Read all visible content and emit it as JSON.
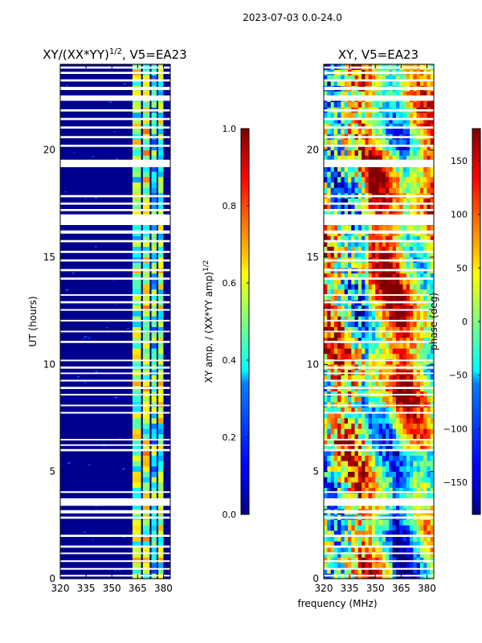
{
  "suptitle": "2023-07-03 0.0-24.0",
  "xlabel": "frequency (MHz)",
  "colors": {
    "gap": "#ffffff",
    "frame": "#000000"
  },
  "chart_data": [
    {
      "type": "heatmap",
      "title_main": "XY/(XX*YY)",
      "title_sup": "1/2",
      "title_tail": ", V5=EA23",
      "xlabel": "frequency (MHz)",
      "ylabel": "UT (hours)",
      "xlim": [
        320,
        384
      ],
      "ylim": [
        0,
        24
      ],
      "xticks": [
        320,
        335,
        350,
        365,
        380
      ],
      "yticks": [
        0,
        5,
        10,
        15,
        20
      ],
      "colorbar": {
        "label_main": "XY amp. / (XX*YY amp)",
        "label_sup": "1/2",
        "range": [
          0.0,
          1.0
        ],
        "ticks": [
          "0.0",
          "0.2",
          "0.4",
          "0.6",
          "0.8",
          "1.0"
        ],
        "colormap": "jet"
      },
      "description_bands": [
        {
          "freq_range": [
            362,
            367
          ],
          "approx_value": 0.5
        },
        {
          "freq_range": [
            368,
            372
          ],
          "approx_value": 0.55
        },
        {
          "freq_range": [
            373,
            376
          ],
          "approx_value": 0.4
        },
        {
          "freq_range": [
            377,
            380
          ],
          "approx_value": 0.5
        }
      ],
      "background_value": 0.03
    },
    {
      "type": "heatmap",
      "title_main": "XY, V5=EA23",
      "xlabel": "frequency (MHz)",
      "ylabel": "",
      "xlim": [
        320,
        384
      ],
      "ylim": [
        0,
        24
      ],
      "xticks": [
        320,
        335,
        350,
        365,
        380
      ],
      "yticks": [
        0,
        5,
        10,
        15,
        20
      ],
      "colorbar": {
        "label_main": "phase (deg)",
        "range": [
          -180,
          180
        ],
        "ticks": [
          "150",
          "100",
          "50",
          "0",
          "−50",
          "−100",
          "−150"
        ],
        "tick_values": [
          150,
          100,
          50,
          0,
          -50,
          -100,
          -150
        ],
        "colormap": "jet"
      }
    }
  ],
  "flagged_hours": [
    [
      0.1,
      0.18
    ],
    [
      0.42,
      0.5
    ],
    [
      0.78,
      0.86
    ],
    [
      1.15,
      1.22
    ],
    [
      1.45,
      1.55
    ],
    [
      1.95,
      2.05
    ],
    [
      2.8,
      2.9
    ],
    [
      3.05,
      3.2
    ],
    [
      3.4,
      3.75
    ],
    [
      4.0,
      4.08
    ],
    [
      5.95,
      6.05
    ],
    [
      6.2,
      6.27
    ],
    [
      6.45,
      6.52
    ],
    [
      7.7,
      7.78
    ],
    [
      8.05,
      8.12
    ],
    [
      8.55,
      8.62
    ],
    [
      8.85,
      8.95
    ],
    [
      9.2,
      9.28
    ],
    [
      9.55,
      9.62
    ],
    [
      9.8,
      9.9
    ],
    [
      10.15,
      10.22
    ],
    [
      11.0,
      11.1
    ],
    [
      11.5,
      11.57
    ],
    [
      12.0,
      12.08
    ],
    [
      12.5,
      12.58
    ],
    [
      12.85,
      12.95
    ],
    [
      13.2,
      13.27
    ],
    [
      13.95,
      14.05
    ],
    [
      14.35,
      14.45
    ],
    [
      14.8,
      14.9
    ],
    [
      15.2,
      15.3
    ],
    [
      15.7,
      15.8
    ],
    [
      16.1,
      16.25
    ],
    [
      16.5,
      17.0
    ],
    [
      17.15,
      17.25
    ],
    [
      17.45,
      17.55
    ],
    [
      17.8,
      17.9
    ],
    [
      19.2,
      19.55
    ],
    [
      20.15,
      20.25
    ],
    [
      20.55,
      20.65
    ],
    [
      21.0,
      21.1
    ],
    [
      21.4,
      21.5
    ],
    [
      21.8,
      21.9
    ],
    [
      22.3,
      22.55
    ],
    [
      22.8,
      22.95
    ],
    [
      23.2,
      23.3
    ],
    [
      23.55,
      23.65
    ],
    [
      23.8,
      23.9
    ]
  ]
}
